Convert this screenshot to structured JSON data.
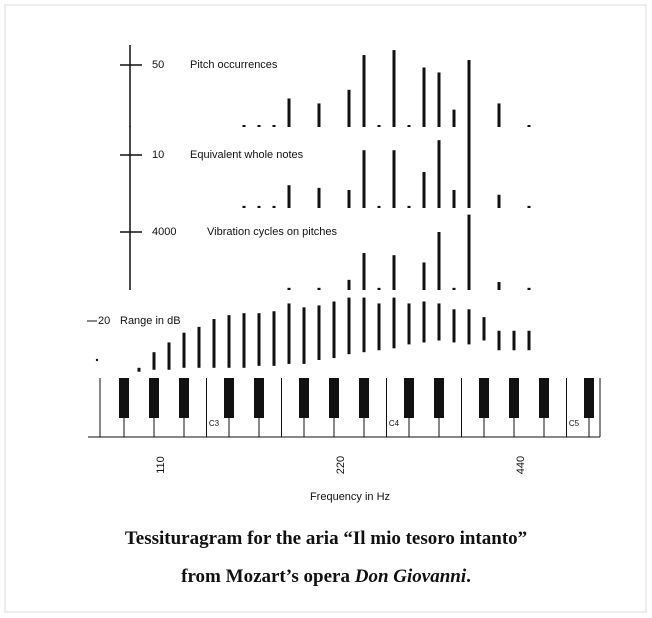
{
  "chart_data": {
    "type": "tessituragram",
    "panels": [
      {
        "scale": 50,
        "label": "Pitch occurrences",
        "values": [
          null,
          null,
          null,
          null,
          null,
          null,
          null,
          1,
          1,
          1,
          23,
          null,
          19,
          null,
          30,
          58,
          1,
          62,
          1,
          48,
          44,
          14,
          54,
          null,
          19,
          null,
          1
        ]
      },
      {
        "scale": 10,
        "label": "Equivalent whole notes",
        "values": [
          null,
          null,
          null,
          null,
          null,
          null,
          null,
          0.4,
          0.4,
          0.4,
          4.3,
          null,
          3.8,
          null,
          3.4,
          10.9,
          0.4,
          10.9,
          0.4,
          6.8,
          12.8,
          3.4,
          15.7,
          null,
          2.5,
          null,
          0.4
        ]
      },
      {
        "scale": 4000,
        "label": "Vibration cycles on pitches",
        "values": [
          null,
          null,
          null,
          null,
          null,
          null,
          null,
          null,
          null,
          null,
          150,
          null,
          150,
          null,
          700,
          2550,
          150,
          2400,
          null,
          1900,
          4000,
          150,
          5200,
          null,
          550,
          null,
          150
        ]
      }
    ],
    "range": {
      "scale": 20,
      "label": "Range in dB",
      "high": [
        -4,
        4,
        9,
        14,
        17,
        21,
        23,
        24,
        24,
        25,
        29,
        27,
        28,
        30,
        32,
        32,
        29,
        32,
        29,
        30,
        29,
        26,
        26,
        22,
        15,
        15,
        15
      ],
      "low": [
        -6,
        -5,
        -5,
        -4,
        -4,
        -4,
        -4,
        -4,
        -3,
        -3,
        -2,
        -2,
        0,
        1,
        3,
        4,
        5,
        6,
        8,
        9,
        10,
        9,
        8,
        10,
        5,
        5,
        5
      ]
    },
    "key_labels": [
      "C3",
      "C4",
      "C5"
    ],
    "xticks": [
      110,
      220,
      440
    ],
    "xlabel": "Frequency in Hz"
  },
  "caption": {
    "line1": "Tessituragram for the aria “Il mio tesoro  intanto”",
    "line2_prefix": "from Mozart’s opera ",
    "line2_italic": "Don Giovanni",
    "line2_suffix": "."
  }
}
